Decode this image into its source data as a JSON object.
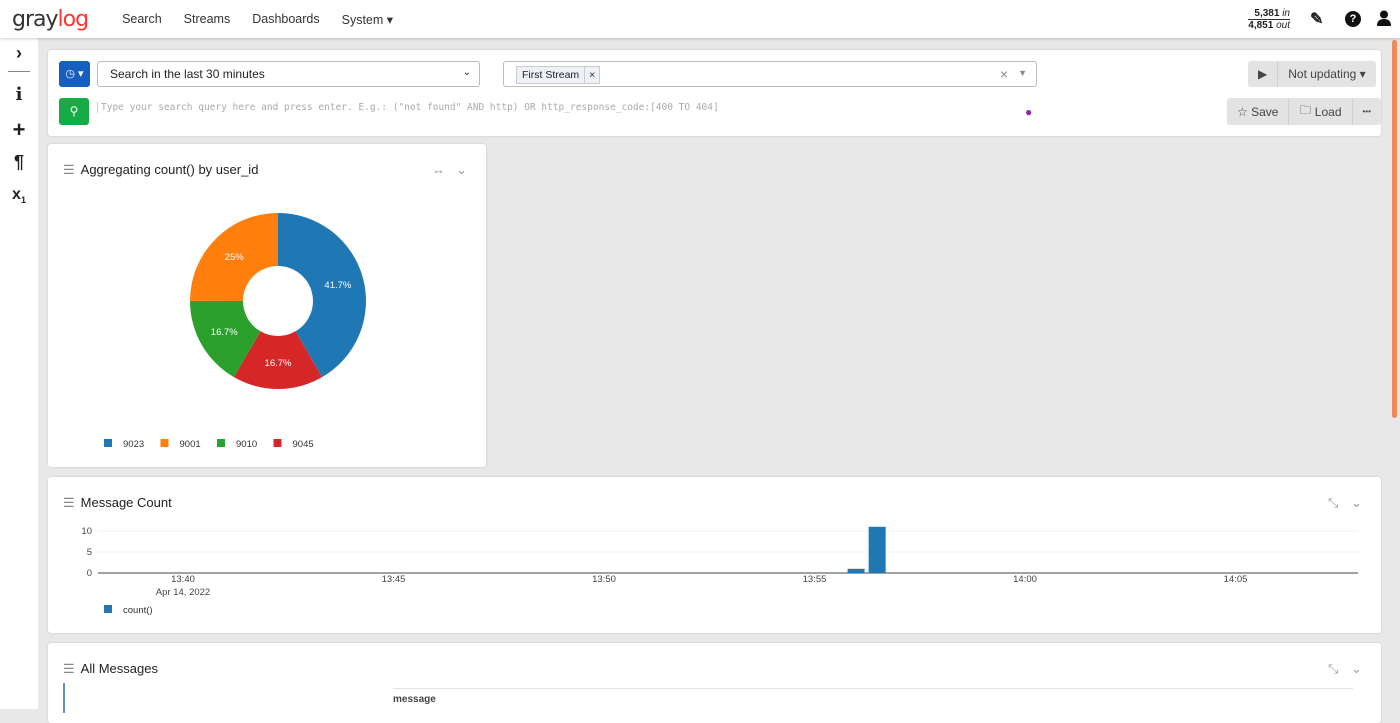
{
  "nav": {
    "logo_text": "gray",
    "logo_accent": "log",
    "items": [
      "Search",
      "Streams",
      "Dashboards",
      "System ▾"
    ]
  },
  "throughput": {
    "in_value": "5,381",
    "in_label": "in",
    "out_value": "4,851",
    "out_label": "out"
  },
  "search": {
    "timerange": "Search in the last 30 minutes",
    "stream_chip": "First Stream",
    "query_placeholder": "Type your search query here and press enter. E.g.: (\"not found\" AND http) OR http_response_code:[400 TO 404]",
    "refresh": "Not updating",
    "save": "Save",
    "load": "Load",
    "more": "•••"
  },
  "widgets": {
    "pie_title": "Aggregating count() by user_id",
    "bar_title": "Message Count",
    "messages_title": "All Messages",
    "messages_col": "message"
  },
  "chart_data": [
    {
      "type": "pie",
      "donut": true,
      "slices": [
        {
          "label": "9023",
          "value": 41.7,
          "text": "41.7%",
          "color": "#1f77b4"
        },
        {
          "label": "9045",
          "value": 16.7,
          "text": "16.7%",
          "color": "#d62728"
        },
        {
          "label": "9010",
          "value": 16.7,
          "text": "16.7%",
          "color": "#2ca02c"
        },
        {
          "label": "9001",
          "value": 25,
          "text": "25%",
          "color": "#ff7f0e"
        }
      ],
      "legend": [
        "9023",
        "9001",
        "9010",
        "9045"
      ],
      "legend_placement": "bottom-left"
    },
    {
      "type": "bar",
      "series": [
        {
          "name": "count()",
          "color": "#1f77b4",
          "x": [
            "13:56:00",
            "13:56:30"
          ],
          "values": [
            1,
            11
          ]
        }
      ],
      "yticks": [
        "0",
        "5",
        "10"
      ],
      "ylim": [
        0,
        11
      ],
      "xticks": [
        "13:40",
        "13:45",
        "13:50",
        "13:55",
        "14:00",
        "14:05"
      ],
      "xdate": "Apr 14, 2022",
      "grid": true,
      "legend_placement": "bottom-left"
    }
  ]
}
